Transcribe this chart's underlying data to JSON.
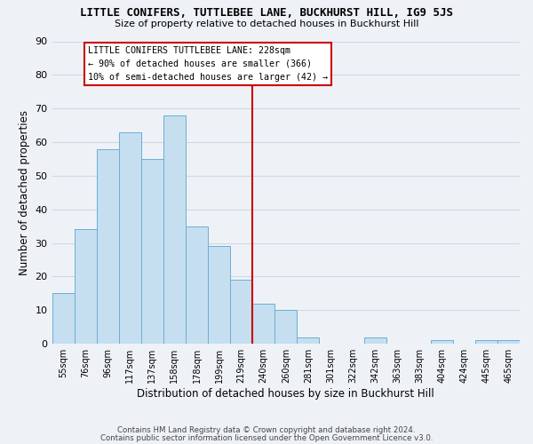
{
  "title": "LITTLE CONIFERS, TUTTLEBEE LANE, BUCKHURST HILL, IG9 5JS",
  "subtitle": "Size of property relative to detached houses in Buckhurst Hill",
  "xlabel": "Distribution of detached houses by size in Buckhurst Hill",
  "ylabel": "Number of detached properties",
  "bar_labels": [
    "55sqm",
    "76sqm",
    "96sqm",
    "117sqm",
    "137sqm",
    "158sqm",
    "178sqm",
    "199sqm",
    "219sqm",
    "240sqm",
    "260sqm",
    "281sqm",
    "301sqm",
    "322sqm",
    "342sqm",
    "363sqm",
    "383sqm",
    "404sqm",
    "424sqm",
    "445sqm",
    "465sqm"
  ],
  "bar_values": [
    15,
    34,
    58,
    63,
    55,
    68,
    35,
    29,
    19,
    12,
    10,
    2,
    0,
    0,
    2,
    0,
    0,
    1,
    0,
    1,
    1
  ],
  "bar_color": "#c5dff0",
  "bar_edge_color": "#6aafd4",
  "grid_color": "#d0d8e0",
  "background_color": "#eef2f7",
  "vline_x": 8.5,
  "vline_color": "#cc0000",
  "annotation_box_text": [
    "LITTLE CONIFERS TUTTLEBEE LANE: 228sqm",
    "← 90% of detached houses are smaller (366)",
    "10% of semi-detached houses are larger (42) →"
  ],
  "ylim": [
    0,
    90
  ],
  "yticks": [
    0,
    10,
    20,
    30,
    40,
    50,
    60,
    70,
    80,
    90
  ],
  "footer_line1": "Contains HM Land Registry data © Crown copyright and database right 2024.",
  "footer_line2": "Contains public sector information licensed under the Open Government Licence v3.0."
}
